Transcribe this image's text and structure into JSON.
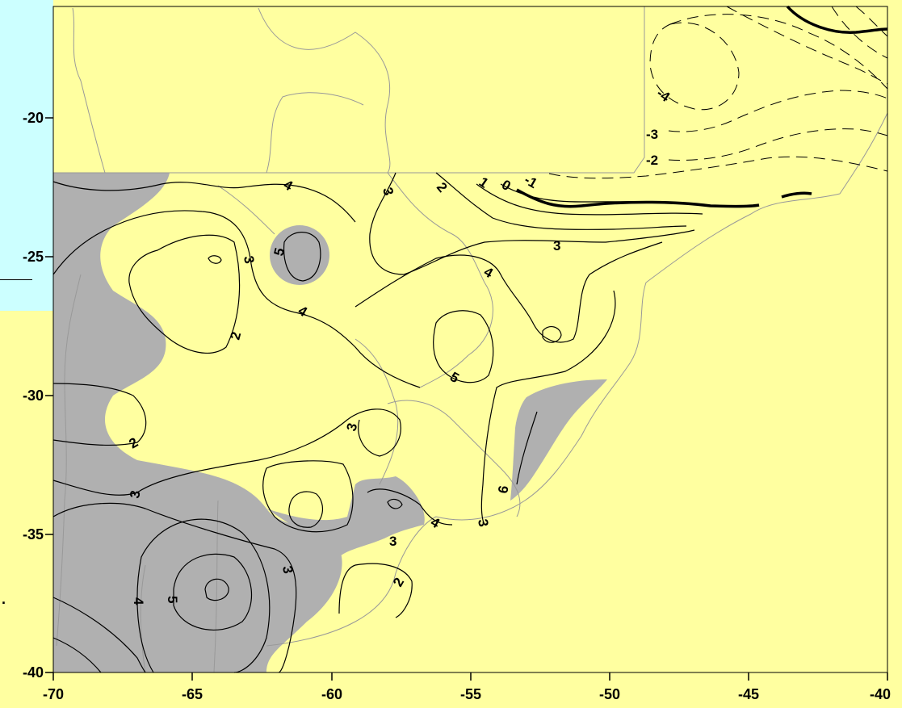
{
  "x_axis": {
    "ticks": [
      "-70",
      "-65",
      "-60",
      "-55",
      "-50",
      "-45",
      "-40"
    ]
  },
  "y_axis": {
    "ticks": [
      "-20",
      "-25",
      "-30",
      "-35",
      "-40"
    ]
  },
  "contour_labels": {
    "neg4": "-4",
    "neg3": "-3",
    "neg2": "-2",
    "neg1": "-1",
    "zero": "0",
    "one": "1",
    "two_ne": "2",
    "three_n": "3",
    "four_n": "4",
    "three_e": "3",
    "four_ec": "4",
    "five_c": "5",
    "two_w": "2",
    "three_w": "3",
    "four_w": "4",
    "two_sw": "2",
    "three_c": "3",
    "three_sw": "3",
    "four_s": "4",
    "five_se": "5",
    "six_se": "6",
    "three_s": "3",
    "two_s": "2",
    "three_ss": "3",
    "four_sw": "4",
    "five_sw": "5"
  },
  "colors": {
    "background": "#ffffa0",
    "shading": "#b0b0b0",
    "panel": "#ccffff",
    "borders": "#999999"
  }
}
